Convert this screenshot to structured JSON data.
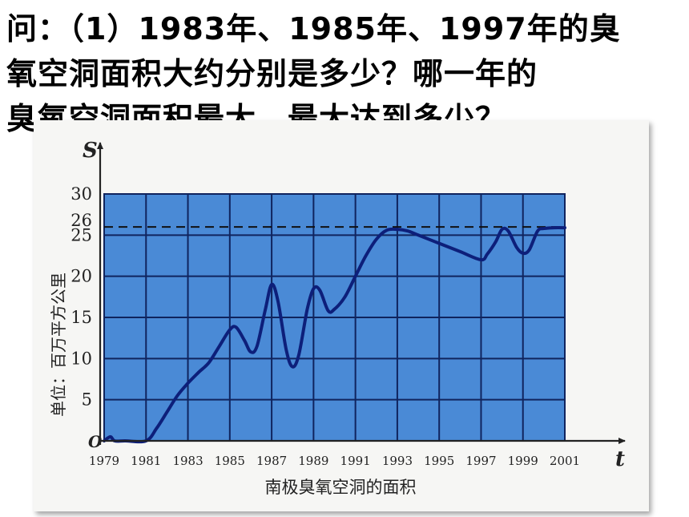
{
  "question": {
    "lines": [
      "问：（1）1983年、1985年、1997年的臭",
      "氧空洞面积大约分别是多少？哪一年的",
      "臭氧空洞面积最大，最大达到多少？"
    ]
  },
  "chart_data": {
    "type": "line",
    "title": "",
    "caption": "南极臭氧空洞的面积",
    "xlabel": "t",
    "ylabel_symbol": "S",
    "ylabel_unit": "单位：百万平方公里",
    "origin_label": "O",
    "x_ticks": [
      "1979",
      "1981",
      "1983",
      "1985",
      "1987",
      "1989",
      "1991",
      "1993",
      "1995",
      "1997",
      "1999",
      "2001"
    ],
    "y_ticks": [
      "5",
      "10",
      "15",
      "20",
      "25",
      "30"
    ],
    "reference_tick": "26",
    "reference_line": 26,
    "xlim": [
      1979,
      2001
    ],
    "ylim": [
      0,
      30
    ],
    "grid": true,
    "background_color": "#4a8ad6",
    "grid_color": "#10245e",
    "line_color": "#0d1f7a",
    "x": [
      1979,
      1979.3,
      1979.5,
      1980,
      1981,
      1981.5,
      1982,
      1982.5,
      1983,
      1983.5,
      1984,
      1984.5,
      1985,
      1985.3,
      1985.7,
      1986,
      1986.3,
      1986.7,
      1987,
      1987.3,
      1987.7,
      1988,
      1988.3,
      1988.7,
      1989,
      1989.3,
      1989.7,
      1990,
      1990.5,
      1991,
      1991.5,
      1992,
      1992.5,
      1993,
      1993.5,
      1994,
      1995,
      1996,
      1997,
      1997.3,
      1997.7,
      1998,
      1998.3,
      1998.7,
      1999,
      1999.3,
      1999.7,
      2000,
      2000.5,
      2001
    ],
    "y": [
      0,
      0.5,
      0,
      0,
      0,
      1.5,
      3.5,
      5.5,
      7,
      8.3,
      9.5,
      11.5,
      13.5,
      13.8,
      12.2,
      10.8,
      11.5,
      16,
      19,
      17,
      11,
      9,
      10.5,
      16,
      18.5,
      18.3,
      15.8,
      16,
      17.5,
      20,
      22.5,
      24.5,
      25.6,
      25.7,
      25.5,
      25,
      24,
      23,
      22,
      22.7,
      24.2,
      25.7,
      25.5,
      23.5,
      22.8,
      23.2,
      25.5,
      25.8,
      25.9,
      25.9
    ]
  }
}
